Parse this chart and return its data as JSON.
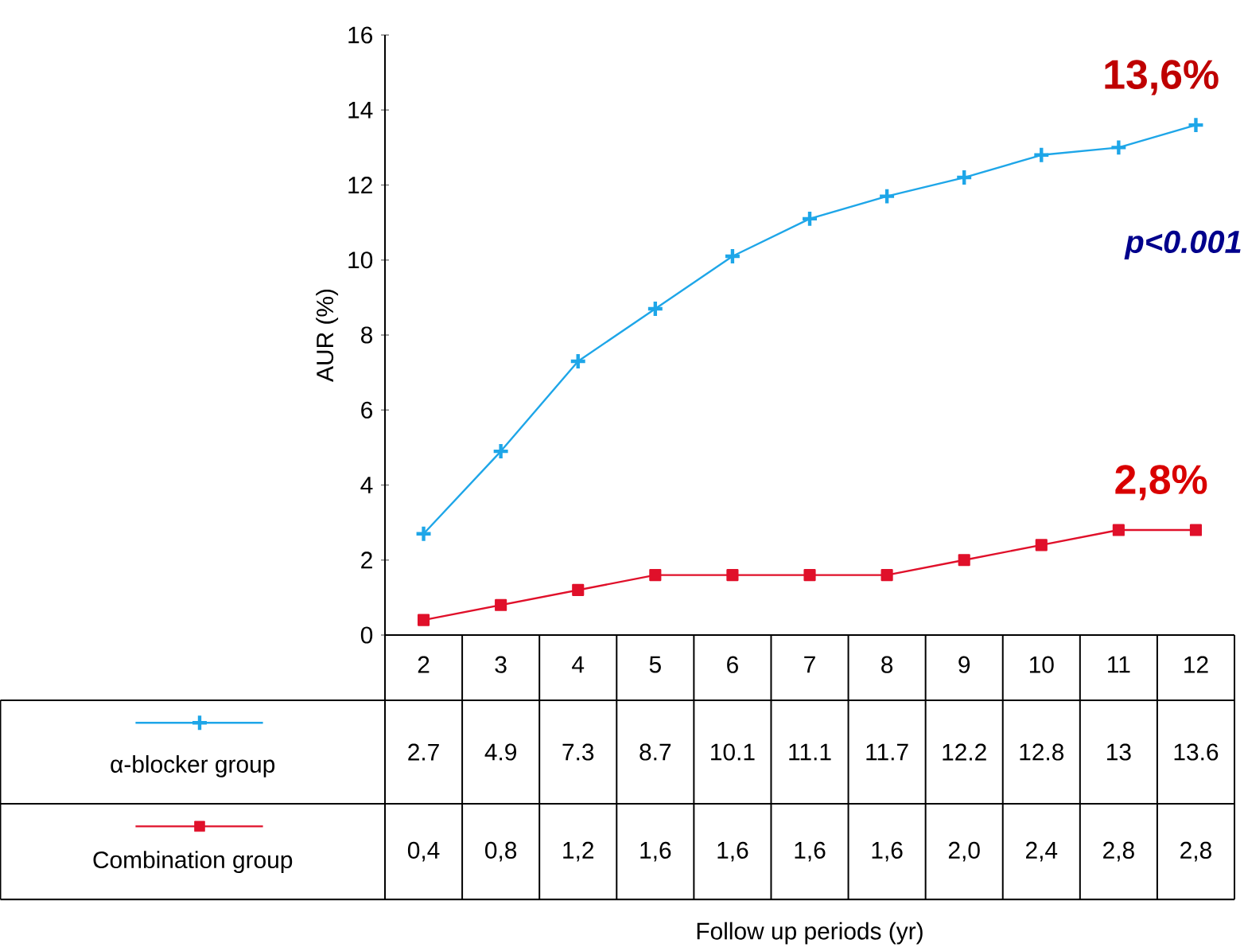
{
  "chart_data": {
    "type": "line",
    "ylabel": "AUR (%)",
    "legend": "bottom left",
    "categories": [
      "2",
      "3",
      "4",
      "5",
      "6",
      "7",
      "8",
      "9",
      "10",
      "11",
      "12"
    ],
    "ylim": [
      0,
      16
    ],
    "yticks": [
      0,
      2,
      4,
      6,
      8,
      10,
      12,
      14,
      16
    ],
    "series": [
      {
        "name": "α-blocker group",
        "color": "#1ea6e8",
        "marker": "cross",
        "values": [
          2.7,
          4.9,
          7.3,
          8.7,
          10.1,
          11.1,
          11.7,
          12.2,
          12.8,
          13,
          13.6
        ],
        "value_labels": [
          "2.7",
          "4.9",
          "7.3",
          "8.7",
          "10.1",
          "11.1",
          "11.7",
          "12.2",
          "12.8",
          "13",
          "13.6"
        ]
      },
      {
        "name": "Combination group",
        "color": "#e0102a",
        "marker": "square",
        "values": [
          0.4,
          0.8,
          1.2,
          1.6,
          1.6,
          1.6,
          1.6,
          2.0,
          2.4,
          2.8,
          2.8
        ],
        "value_labels": [
          "0,4",
          "0,8",
          "1,2",
          "1,6",
          "1,6",
          "1,6",
          "1,6",
          "2,0",
          "2,4",
          "2,8",
          "2,8"
        ]
      }
    ],
    "annotations": [
      {
        "text": "13,6%",
        "x": "12",
        "y": 13.6
      },
      "p<0.001",
      {
        "text": "2,8%",
        "x": "12",
        "y": 2.8
      },
      "Follow up periods (yr)"
    ]
  }
}
